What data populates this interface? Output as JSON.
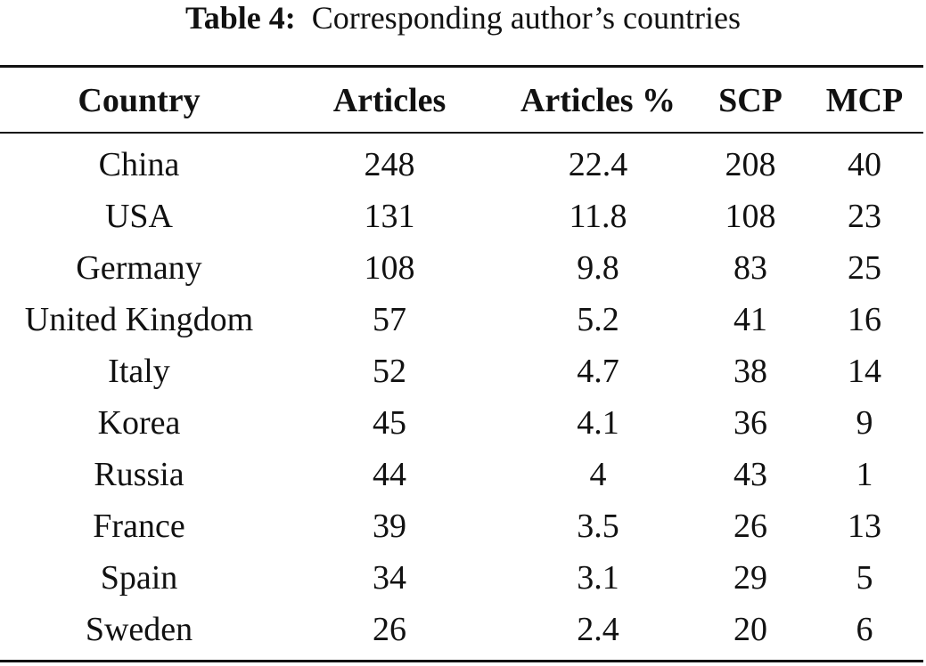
{
  "caption": {
    "label": "Table 4:",
    "text": "Corresponding author’s countries"
  },
  "table": {
    "headers": [
      "Country",
      "Articles",
      "Articles %",
      "SCP",
      "MCP"
    ],
    "rows": [
      [
        "China",
        "248",
        "22.4",
        "208",
        "40"
      ],
      [
        "USA",
        "131",
        "11.8",
        "108",
        "23"
      ],
      [
        "Germany",
        "108",
        "9.8",
        "83",
        "25"
      ],
      [
        "United Kingdom",
        "57",
        "5.2",
        "41",
        "16"
      ],
      [
        "Italy",
        "52",
        "4.7",
        "38",
        "14"
      ],
      [
        "Korea",
        "45",
        "4.1",
        "36",
        "9"
      ],
      [
        "Russia",
        "44",
        "4",
        "43",
        "1"
      ],
      [
        "France",
        "39",
        "3.5",
        "26",
        "13"
      ],
      [
        "Spain",
        "34",
        "3.1",
        "29",
        "5"
      ],
      [
        "Sweden",
        "26",
        "2.4",
        "20",
        "6"
      ]
    ]
  }
}
